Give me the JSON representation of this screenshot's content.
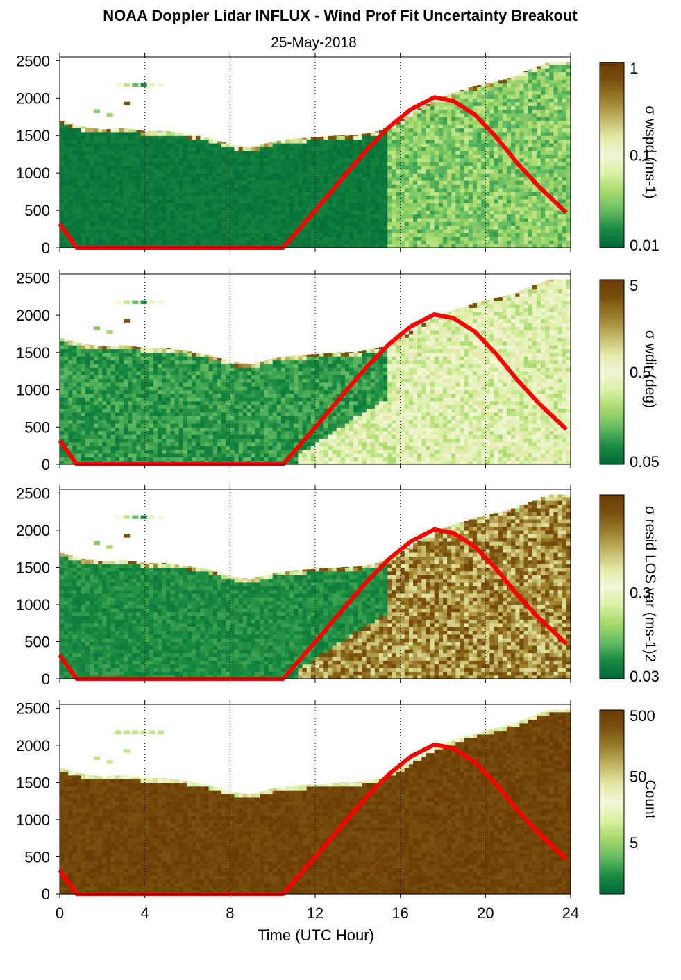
{
  "title": "NOAA Doppler Lidar INFLUX - Wind Prof Fit Uncertainty Breakout",
  "subtitle": "25-May-2018",
  "xlabel": "Time (UTC Hour)",
  "x_ticks": [
    "0",
    "4",
    "8",
    "12",
    "16",
    "20",
    "24"
  ],
  "y_ticks": [
    "0",
    "500",
    "1000",
    "1500",
    "2000",
    "2500"
  ],
  "colors": {
    "curve": "#ff0000",
    "low": "#006837",
    "high": "#6a3a04",
    "mid": "#f2f7d8"
  },
  "chart_data": [
    {
      "type": "heatmap",
      "x_range": [
        0,
        24
      ],
      "y_range": [
        0,
        2550
      ],
      "colorbar_label": "σ wspd (ms-1)",
      "colorbar_ticks": [
        "1",
        "0.1",
        "0.01"
      ],
      "colorbar_scale": "log",
      "overlay_curve_color": "red"
    },
    {
      "type": "heatmap",
      "x_range": [
        0,
        24
      ],
      "y_range": [
        0,
        2550
      ],
      "colorbar_label": "σ wdir (deg)",
      "colorbar_ticks": [
        "5",
        "0.5",
        "0.05"
      ],
      "colorbar_scale": "log",
      "overlay_curve_color": "red"
    },
    {
      "type": "heatmap",
      "x_range": [
        0,
        24
      ],
      "y_range": [
        0,
        2550
      ],
      "colorbar_label": "σ resid LOS var (ms-1)2",
      "colorbar_ticks": [
        "0.3",
        "0.03"
      ],
      "colorbar_scale": "log",
      "overlay_curve_color": "red"
    },
    {
      "type": "heatmap",
      "x_range": [
        0,
        24
      ],
      "y_range": [
        0,
        2550
      ],
      "colorbar_label": "Count",
      "colorbar_ticks": [
        "500",
        "50",
        "5"
      ],
      "colorbar_scale": "log",
      "overlay_curve_color": "red"
    }
  ],
  "red_curve": {
    "x": [
      0,
      0.8,
      10.5,
      11.5,
      12.5,
      13.5,
      14.5,
      15.5,
      16.5,
      17.6,
      18.5,
      19.5,
      20.5,
      21.5,
      22.5,
      23.8
    ],
    "y": [
      320,
      0,
      0,
      330,
      660,
      1000,
      1330,
      1620,
      1850,
      2010,
      1960,
      1780,
      1480,
      1130,
      820,
      470
    ]
  },
  "data_top": {
    "x": [
      0,
      1,
      2,
      3,
      4,
      5,
      6,
      7,
      8,
      9,
      10,
      11,
      12,
      13,
      14,
      15,
      16,
      17,
      18,
      19,
      20,
      21,
      22,
      23,
      23.8
    ],
    "y": [
      1700,
      1620,
      1580,
      1600,
      1560,
      1560,
      1520,
      1470,
      1380,
      1340,
      1420,
      1460,
      1480,
      1500,
      1510,
      1560,
      1700,
      1880,
      2020,
      2120,
      2200,
      2260,
      2370,
      2480,
      2480
    ]
  },
  "transition_x": 15.2
}
